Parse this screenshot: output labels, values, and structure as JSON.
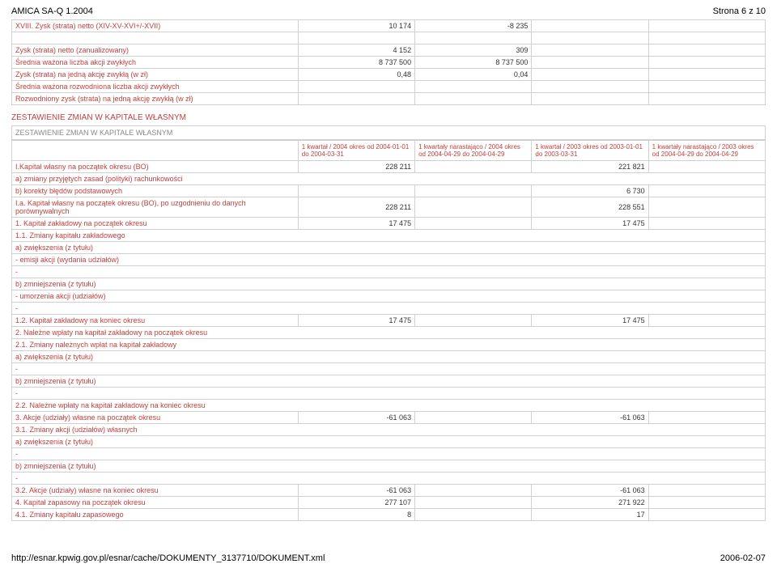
{
  "header": {
    "left": "AMICA SA-Q 1.2004",
    "right": "Strona 6 z 10"
  },
  "footer": {
    "left": "http://esnar.kpwig.gov.pl/esnar/cache/DOKUMENTY_3137710/DOKUMENT.xml",
    "right": "2006-02-07"
  },
  "table1_rows": [
    {
      "label": "XVIII. Zysk (strata) netto (XIV-XV-XVI+/-XVII)",
      "c1": "10 174",
      "c2": "-8 235",
      "c3": "",
      "c4": ""
    },
    {
      "blank": true
    },
    {
      "label": "Zysk (strata) netto (zanualizowany)",
      "c1": "4 152",
      "c2": "309",
      "c3": "",
      "c4": ""
    },
    {
      "label": "Średnia ważona liczba akcji zwykłych",
      "c1": "8 737 500",
      "c2": "8 737 500",
      "c3": "",
      "c4": ""
    },
    {
      "label": "Zysk (strata) na jedną akcję zwykłą (w zł)",
      "c1": "0,48",
      "c2": "0,04",
      "c3": "",
      "c4": ""
    },
    {
      "label": "Średnia ważona rozwodniona liczba akcji zwykłych",
      "c1": "",
      "c2": "",
      "c3": "",
      "c4": ""
    },
    {
      "label": "Rozwodniony zysk (strata) na jedną akcję zwykłą (w zł)",
      "c1": "",
      "c2": "",
      "c3": "",
      "c4": ""
    }
  ],
  "section_title": "ZESTAWIENIE ZMIAN W KAPITALE WŁASNYM",
  "inner_title": "ZESTAWIENIE ZMIAN W KAPITALE WŁASNYM",
  "col_headers": [
    "1 kwartał / 2004 okres od 2004-01-01 do 2004-03-31",
    "1 kwartały narastająco / 2004 okres od 2004-04-29 do 2004-04-29",
    "1 kwartał / 2003 okres od 2003-01-01 do 2003-03-31",
    "1 kwartały narastająco / 2003 okres od 2004-04-29 do 2004-04-29"
  ],
  "table2_rows": [
    {
      "label": "I.Kapitał własny na początek okresu (BO)",
      "c1": "228 211",
      "c2": "",
      "c3": "221 821",
      "c4": ""
    },
    {
      "label": "a) zmiany przyjętych zasad (polityki) rachunkowości",
      "span": true
    },
    {
      "label": "b) korekty błędów podstawowych",
      "c1": "",
      "c2": "",
      "c3": "6 730",
      "c4": ""
    },
    {
      "label": "I.a. Kapitał własny na początek okresu (BO), po uzgodnieniu do danych porównywalnych",
      "c1": "228 211",
      "c2": "",
      "c3": "228 551",
      "c4": ""
    },
    {
      "label": "1. Kapitał zakładowy na początek okresu",
      "c1": "17 475",
      "c2": "",
      "c3": "17 475",
      "c4": ""
    },
    {
      "label": "1.1. Zmiany kapitału zakładowego",
      "span": true
    },
    {
      "label": "a) zwiększenia (z tytułu)",
      "span": true
    },
    {
      "label": "- emisji akcji (wydania udziałów)",
      "span": true
    },
    {
      "label": "-",
      "span": true
    },
    {
      "label": "b) zmniejszenia (z tytułu)",
      "span": true
    },
    {
      "label": "- umorzenia akcji (udziałów)",
      "span": true
    },
    {
      "label": "-",
      "span": true
    },
    {
      "label": "1.2. Kapitał zakładowy na koniec okresu",
      "c1": "17 475",
      "c2": "",
      "c3": "17 475",
      "c4": ""
    },
    {
      "label": "2. Należne wpłaty na kapitał zakładowy na początek okresu",
      "span": true
    },
    {
      "label": "2.1. Zmiany należnych wpłat na kapitał zakładowy",
      "span": true
    },
    {
      "label": "a) zwiększenia (z tytułu)",
      "span": true
    },
    {
      "label": "-",
      "span": true
    },
    {
      "label": "b) zmniejszenia (z tytułu)",
      "span": true
    },
    {
      "label": "-",
      "span": true
    },
    {
      "label": "2.2. Należne wpłaty na kapitał zakładowy na koniec okresu",
      "span": true
    },
    {
      "label": "3. Akcje (udziały) własne na początek okresu",
      "c1": "-61 063",
      "c2": "",
      "c3": "-61 063",
      "c4": ""
    },
    {
      "label": "3.1. Zmiany akcji (udziałów) własnych",
      "span": true
    },
    {
      "label": "a) zwiększenia (z tytułu)",
      "span": true
    },
    {
      "label": "-",
      "span": true
    },
    {
      "label": "b) zmniejszenia (z tytułu)",
      "span": true
    },
    {
      "label": "-",
      "span": true
    },
    {
      "label": "3.2. Akcje (udziały) własne na koniec okresu",
      "c1": "-61 063",
      "c2": "",
      "c3": "-61 063",
      "c4": ""
    },
    {
      "label": "4. Kapitał zapasowy na początek okresu",
      "c1": "277 107",
      "c2": "",
      "c3": "271 922",
      "c4": ""
    },
    {
      "label": "4.1. Zmiany kapitału zapasowego",
      "c1": "8",
      "c2": "",
      "c3": "17",
      "c4": ""
    }
  ]
}
